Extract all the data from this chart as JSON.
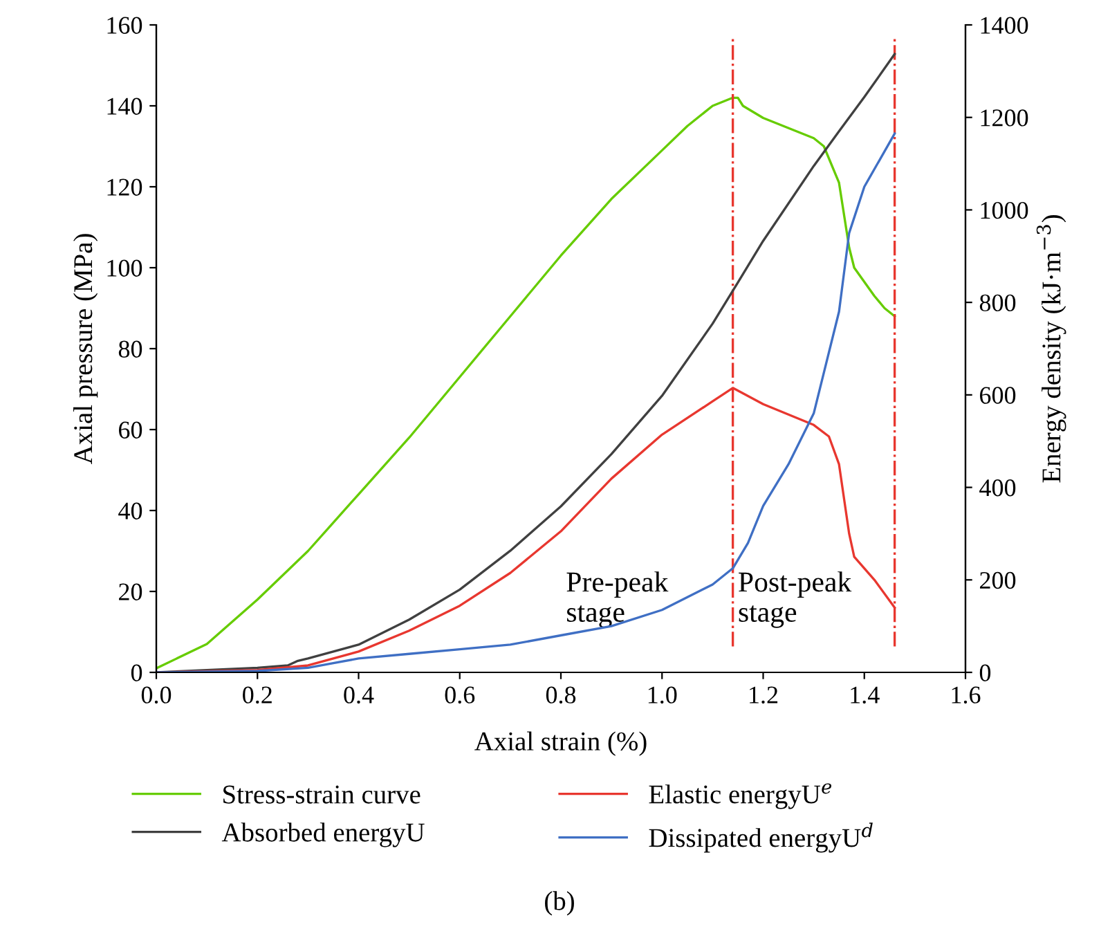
{
  "chart_data": {
    "type": "line",
    "xlabel": "Axial strain (%)",
    "ylabel": "Axial pressure (MPa)",
    "y2label": "Energy density (kJ·m$^{−3}$)",
    "xlim": [
      0,
      1.6
    ],
    "xticks": [
      {
        "value": 0,
        "label": "0.0"
      },
      0.2,
      0.4,
      0.6,
      0.8,
      {
        "value": 1,
        "label": "1.0"
      },
      1.2,
      1.4,
      1.6
    ],
    "ylim": [
      0,
      160
    ],
    "yticks": [
      0,
      20,
      40,
      60,
      80,
      100,
      120,
      140,
      160
    ],
    "y2lim": [
      0,
      1400
    ],
    "y2ticks": [
      0,
      200,
      400,
      600,
      800,
      1000,
      1200,
      1400
    ],
    "grid": false,
    "legend": "bottom",
    "marker": "none",
    "line_style": "solid",
    "series": [
      {
        "name": "Stress-strain curve",
        "color": "#66cc00",
        "x": [
          0,
          0.1,
          0.2,
          0.3,
          0.4,
          0.5,
          0.6,
          0.7,
          0.8,
          0.9,
          1.0,
          1.05,
          1.1,
          1.14,
          1.15,
          1.16,
          1.2,
          1.3,
          1.32,
          1.35,
          1.37,
          1.38,
          1.42,
          1.44,
          1.46
        ],
        "values": [
          1,
          7,
          18,
          30,
          44,
          58,
          73,
          88,
          103,
          117,
          129,
          135,
          140,
          142,
          142,
          140,
          137,
          132,
          130,
          121,
          105,
          100,
          93,
          90,
          88
        ]
      },
      {
        "name": "Absorbed energyU",
        "color": "#404040",
        "axis": "y2",
        "x": [
          0,
          0.1,
          0.2,
          0.26,
          0.28,
          0.3,
          0.4,
          0.5,
          0.6,
          0.7,
          0.8,
          0.9,
          1.0,
          1.1,
          1.15,
          1.2,
          1.3,
          1.35,
          1.4,
          1.46
        ],
        "values": [
          0,
          5,
          10,
          15,
          25,
          30,
          60,
          114,
          179,
          263,
          359,
          472,
          598,
          754,
          843,
          933,
          1095,
          1170,
          1244,
          1337
        ]
      },
      {
        "name": "Elastic energyU$^{e}$",
        "color": "#e8372f",
        "axis": "y2",
        "x": [
          0,
          0.2,
          0.3,
          0.4,
          0.5,
          0.6,
          0.7,
          0.8,
          0.9,
          1.0,
          1.1,
          1.14,
          1.2,
          1.3,
          1.33,
          1.35,
          1.37,
          1.38,
          1.42,
          1.46
        ],
        "values": [
          0,
          5,
          15,
          45,
          90,
          144,
          215,
          305,
          419,
          514,
          586,
          615,
          580,
          535,
          510,
          450,
          300,
          250,
          200,
          140
        ]
      },
      {
        "name": "Dissipated energyU$^{d}$",
        "color": "#3f6fc4",
        "axis": "y2",
        "x": [
          0,
          0.2,
          0.3,
          0.35,
          0.4,
          0.5,
          0.6,
          0.7,
          0.8,
          0.9,
          1.0,
          1.1,
          1.14,
          1.17,
          1.2,
          1.25,
          1.3,
          1.35,
          1.37,
          1.4,
          1.46
        ],
        "values": [
          0,
          3,
          10,
          20,
          30,
          40,
          50,
          60,
          80,
          100,
          135,
          190,
          225,
          280,
          360,
          450,
          560,
          780,
          950,
          1050,
          1165
        ]
      }
    ],
    "ref_lines": [
      {
        "axis": "x",
        "value": 1.14,
        "color": "#e8372f",
        "line_style": "dashdot"
      },
      {
        "axis": "x",
        "value": 1.46,
        "color": "#e8372f",
        "line_style": "dashdot"
      }
    ],
    "annotations": [
      {
        "text": "Pre-peak\nstage",
        "x": 0.81,
        "y": 11
      },
      {
        "text": "Post-peak\nstage",
        "x": 1.15,
        "y": 11
      },
      "(b)"
    ]
  }
}
